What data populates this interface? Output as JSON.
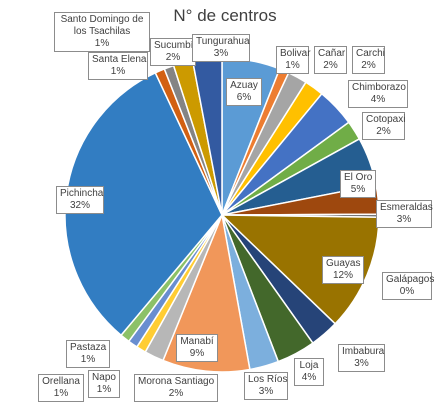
{
  "chart_data": {
    "type": "pie",
    "title": "N° de centros",
    "slices": [
      {
        "label": "Azuay",
        "pct_label": "6%",
        "value": 6,
        "color": "#5b9bd5"
      },
      {
        "label": "Bolívar",
        "pct_label": "1%",
        "value": 1,
        "color": "#ed7d31"
      },
      {
        "label": "Cañar",
        "pct_label": "2%",
        "value": 2,
        "color": "#a5a5a5"
      },
      {
        "label": "Carchi",
        "pct_label": "2%",
        "value": 2,
        "color": "#ffc000"
      },
      {
        "label": "Chimborazo",
        "pct_label": "4%",
        "value": 4,
        "color": "#4472c4"
      },
      {
        "label": "Cotopaxi",
        "pct_label": "2%",
        "value": 2,
        "color": "#70ad47"
      },
      {
        "label": "El Oro",
        "pct_label": "5%",
        "value": 5,
        "color": "#255e91"
      },
      {
        "label": "Esmeraldas",
        "pct_label": "3%",
        "value": 3,
        "color": "#9e480e"
      },
      {
        "label": "Galápagos",
        "pct_label": "0%",
        "value": 0.3,
        "color": "#636363"
      },
      {
        "label": "Guayas",
        "pct_label": "12%",
        "value": 12,
        "color": "#997300"
      },
      {
        "label": "Imbabura",
        "pct_label": "3%",
        "value": 3,
        "color": "#264478"
      },
      {
        "label": "Loja",
        "pct_label": "4%",
        "value": 4,
        "color": "#43682b"
      },
      {
        "label": "Los Ríos",
        "pct_label": "3%",
        "value": 3,
        "color": "#7cafdd"
      },
      {
        "label": "Manabí",
        "pct_label": "9%",
        "value": 9,
        "color": "#f1975a"
      },
      {
        "label": "Morona Santiago",
        "pct_label": "2%",
        "value": 2,
        "color": "#b7b7b7"
      },
      {
        "label": "Napo",
        "pct_label": "1%",
        "value": 1,
        "color": "#ffcd33"
      },
      {
        "label": "Orellana",
        "pct_label": "1%",
        "value": 1,
        "color": "#698ed0"
      },
      {
        "label": "Pastaza",
        "pct_label": "1%",
        "value": 1,
        "color": "#8cc168"
      },
      {
        "label": "Pichincha",
        "pct_label": "32%",
        "value": 32,
        "color": "#327dc2"
      },
      {
        "label": "Santa Elena",
        "pct_label": "1%",
        "value": 1,
        "color": "#d26012"
      },
      {
        "label": "Santo Domingo de los Tsachilas",
        "pct_label": "1%",
        "value": 1,
        "color": "#848484"
      },
      {
        "label": "Sucumbíos",
        "pct_label": "2%",
        "value": 2,
        "color": "#cc9a00"
      },
      {
        "label": "Tungurahua",
        "pct_label": "3%",
        "value": 3,
        "color": "#335aa1"
      }
    ],
    "labels_display": [
      {
        "name": "Azuay",
        "pct": "6%"
      },
      {
        "name": "Bolivar",
        "pct": "1%"
      },
      {
        "name": "Cañar",
        "pct": "2%"
      },
      {
        "name": "Carchi",
        "pct": "2%"
      },
      {
        "name": "Chimborazo",
        "pct": "4%"
      },
      {
        "name": "Cotopaxi",
        "pct": "2%"
      },
      {
        "name": "El Oro",
        "pct": "5%"
      },
      {
        "name": "Esmeraldas",
        "pct": "3%"
      },
      {
        "name": "Galápagos",
        "pct": "0%"
      },
      {
        "name": "Guayas",
        "pct": "12%"
      },
      {
        "name": "Imbabura",
        "pct": "3%"
      },
      {
        "name": "Loja",
        "pct": "4%"
      },
      {
        "name": "Los Ríos",
        "pct": "3%"
      },
      {
        "name": "Manabí",
        "pct": "9%"
      },
      {
        "name": "Morona Santiago",
        "pct": "2%"
      },
      {
        "name": "Napo",
        "pct": "1%"
      },
      {
        "name": "Orellana",
        "pct": "1%"
      },
      {
        "name": "Pastaza",
        "pct": "1%"
      },
      {
        "name": "Pichincha",
        "pct": "32%"
      },
      {
        "name": "Santa Elena",
        "pct": "1%"
      },
      {
        "name": "Santo Domingo de los Tsachilas",
        "pct": "1%"
      },
      {
        "name": "Sucumbí",
        "pct": "2%"
      },
      {
        "name": "Tungurahua",
        "pct": "3%"
      }
    ],
    "start_angle_deg": 0,
    "legend": "none"
  }
}
